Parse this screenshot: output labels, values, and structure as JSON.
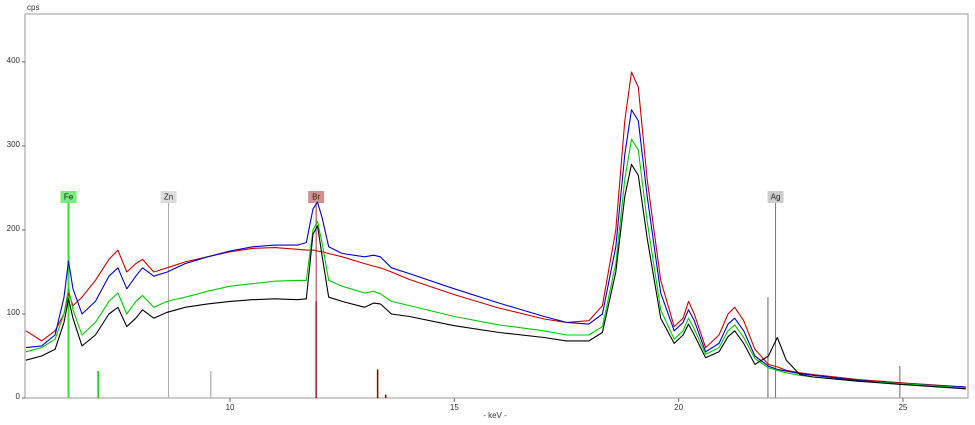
{
  "chart_data": {
    "type": "line",
    "y_label": "cps",
    "x_label": "- keV -",
    "xlim": [
      5.43,
      26.45
    ],
    "ylim": [
      0,
      457
    ],
    "xticks": [
      10,
      15,
      20,
      25
    ],
    "yticks": [
      0,
      100,
      200,
      300,
      400
    ],
    "x": [
      5.45,
      5.8,
      6.1,
      6.3,
      6.4,
      6.5,
      6.7,
      7.0,
      7.3,
      7.5,
      7.7,
      7.9,
      8.05,
      8.3,
      8.6,
      9.0,
      9.5,
      10,
      10.5,
      11,
      11.5,
      11.7,
      11.85,
      11.95,
      12.05,
      12.2,
      12.5,
      13,
      13.2,
      13.35,
      13.6,
      14,
      15,
      16,
      17,
      17.5,
      18,
      18.3,
      18.6,
      18.8,
      18.95,
      19.1,
      19.3,
      19.6,
      19.9,
      20.1,
      20.22,
      20.35,
      20.6,
      20.9,
      21.1,
      21.25,
      21.45,
      21.7,
      22.0,
      22.2,
      22.4,
      22.7,
      23,
      24,
      25,
      26.4
    ],
    "series": [
      {
        "color": "#cc0000",
        "values": [
          80,
          68,
          80,
          100,
          125,
          110,
          120,
          140,
          165,
          176,
          150,
          160,
          165,
          150,
          155,
          162,
          168,
          174,
          178,
          179,
          177,
          176,
          176,
          175,
          174,
          172,
          168,
          160,
          157,
          155,
          150,
          141,
          123,
          107,
          94,
          90,
          92,
          110,
          200,
          330,
          388,
          370,
          260,
          140,
          85,
          95,
          115,
          100,
          60,
          75,
          100,
          108,
          92,
          58,
          40,
          37,
          33,
          30,
          28,
          22,
          18,
          13
        ]
      },
      {
        "color": "#0000cc",
        "values": [
          60,
          62,
          75,
          120,
          163,
          130,
          100,
          115,
          145,
          155,
          130,
          145,
          155,
          145,
          150,
          160,
          168,
          175,
          180,
          182,
          182,
          185,
          225,
          233,
          215,
          180,
          172,
          168,
          170,
          168,
          155,
          148,
          130,
          113,
          97,
          90,
          88,
          100,
          180,
          290,
          343,
          330,
          240,
          125,
          80,
          90,
          105,
          92,
          55,
          65,
          88,
          95,
          80,
          50,
          38,
          34,
          32,
          29,
          27,
          21,
          17,
          13
        ]
      },
      {
        "color": "#00cc00",
        "values": [
          55,
          60,
          70,
          100,
          130,
          105,
          75,
          90,
          115,
          125,
          100,
          115,
          122,
          108,
          115,
          120,
          127,
          133,
          136,
          139,
          140,
          140,
          200,
          210,
          185,
          140,
          133,
          125,
          127,
          124,
          115,
          110,
          97,
          87,
          80,
          75,
          75,
          85,
          160,
          260,
          308,
          295,
          210,
          105,
          70,
          80,
          95,
          82,
          52,
          60,
          80,
          87,
          72,
          47,
          36,
          33,
          30,
          27,
          25,
          20,
          17,
          12
        ]
      },
      {
        "color": "#000000",
        "values": [
          45,
          50,
          58,
          90,
          118,
          95,
          62,
          75,
          100,
          108,
          85,
          95,
          105,
          95,
          102,
          108,
          112,
          115,
          117,
          118,
          117,
          118,
          195,
          205,
          170,
          120,
          115,
          108,
          113,
          112,
          100,
          97,
          86,
          78,
          72,
          68,
          68,
          78,
          150,
          240,
          278,
          265,
          190,
          95,
          65,
          75,
          88,
          75,
          48,
          55,
          73,
          80,
          65,
          40,
          50,
          72,
          45,
          28,
          25,
          20,
          16,
          11
        ]
      }
    ],
    "element_markers": [
      {
        "label": "Fe",
        "energy": 6.4,
        "color": "#33dd33",
        "box": "#77ee77"
      },
      {
        "label": "Zn",
        "energy": 8.63,
        "color": "#aaaaaa",
        "box": "#dddddd"
      },
      {
        "label": "Br",
        "energy": 11.92,
        "color": "#aa3333",
        "box": "#d09090"
      },
      {
        "label": "Ag",
        "energy": 22.16,
        "color": "#777777",
        "box": "#cccccc"
      }
    ],
    "sticks": {
      "x": [
        7.06,
        9.57,
        11.92,
        13.29,
        13.47,
        21.99,
        24.93
      ],
      "values": [
        32,
        32,
        115,
        34,
        4,
        120,
        38
      ],
      "colors": [
        "#00cc00",
        "#bbbbbb",
        "#8b0000",
        "#8b0000",
        "#8b0000",
        "#999999",
        "#999999"
      ]
    }
  }
}
